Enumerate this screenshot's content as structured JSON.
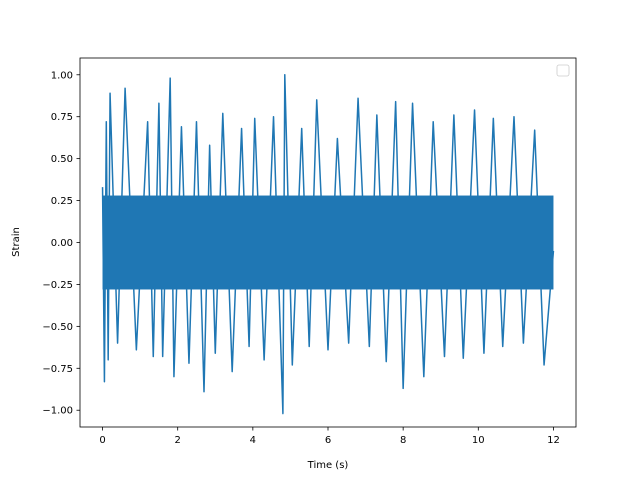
{
  "chart_data": {
    "type": "line",
    "title": "",
    "xlabel": "Time (s)",
    "ylabel": "Strain",
    "xlim": [
      -0.6,
      12.6
    ],
    "ylim": [
      -1.1,
      1.1
    ],
    "x_ticks": [
      0,
      2,
      4,
      6,
      8,
      10,
      12
    ],
    "x_tick_labels": [
      "0",
      "2",
      "4",
      "6",
      "8",
      "10",
      "12"
    ],
    "y_ticks": [
      -1.0,
      -0.75,
      -0.5,
      -0.25,
      0.0,
      0.25,
      0.5,
      0.75,
      1.0
    ],
    "y_tick_labels": [
      "−1.00",
      "−0.75",
      "−0.50",
      "−0.25",
      "0.00",
      "0.25",
      "0.50",
      "0.75",
      "1.00"
    ],
    "grid": false,
    "legend": {
      "placement": "top-right",
      "entries": []
    },
    "line_color": "#1f77b4",
    "series": [
      {
        "x": [
          0,
          0.05,
          0.1,
          0.15,
          0.2,
          0.4,
          0.6,
          0.9,
          1.2,
          1.35,
          1.5,
          1.6,
          1.8,
          1.9,
          2.1,
          2.3,
          2.5,
          2.7,
          2.85,
          3.0,
          3.2,
          3.45,
          3.7,
          3.9,
          4.05,
          4.3,
          4.55,
          4.8,
          4.85,
          5.05,
          5.3,
          5.5,
          5.7,
          6.0,
          6.25,
          6.55,
          6.8,
          7.1,
          7.3,
          7.55,
          7.8,
          8.0,
          8.25,
          8.55,
          8.8,
          9.1,
          9.35,
          9.6,
          9.9,
          10.15,
          10.4,
          10.65,
          10.95,
          11.2,
          11.5,
          11.75,
          12.0
        ],
        "values": [
          0.33,
          -0.83,
          0.72,
          -0.7,
          0.89,
          -0.6,
          0.92,
          -0.64,
          0.72,
          -0.68,
          0.83,
          -0.68,
          0.98,
          -0.8,
          0.69,
          -0.72,
          0.72,
          -0.89,
          0.58,
          -0.66,
          0.77,
          -0.77,
          0.68,
          -0.62,
          0.74,
          -0.7,
          0.75,
          -1.02,
          1.0,
          -0.73,
          0.68,
          -0.62,
          0.85,
          -0.64,
          0.62,
          -0.6,
          0.86,
          -0.62,
          0.76,
          -0.71,
          0.84,
          -0.87,
          0.83,
          -0.8,
          0.72,
          -0.68,
          0.76,
          -0.69,
          0.79,
          -0.66,
          0.74,
          -0.62,
          0.75,
          -0.6,
          0.67,
          -0.73,
          -0.05
        ]
      }
    ]
  }
}
